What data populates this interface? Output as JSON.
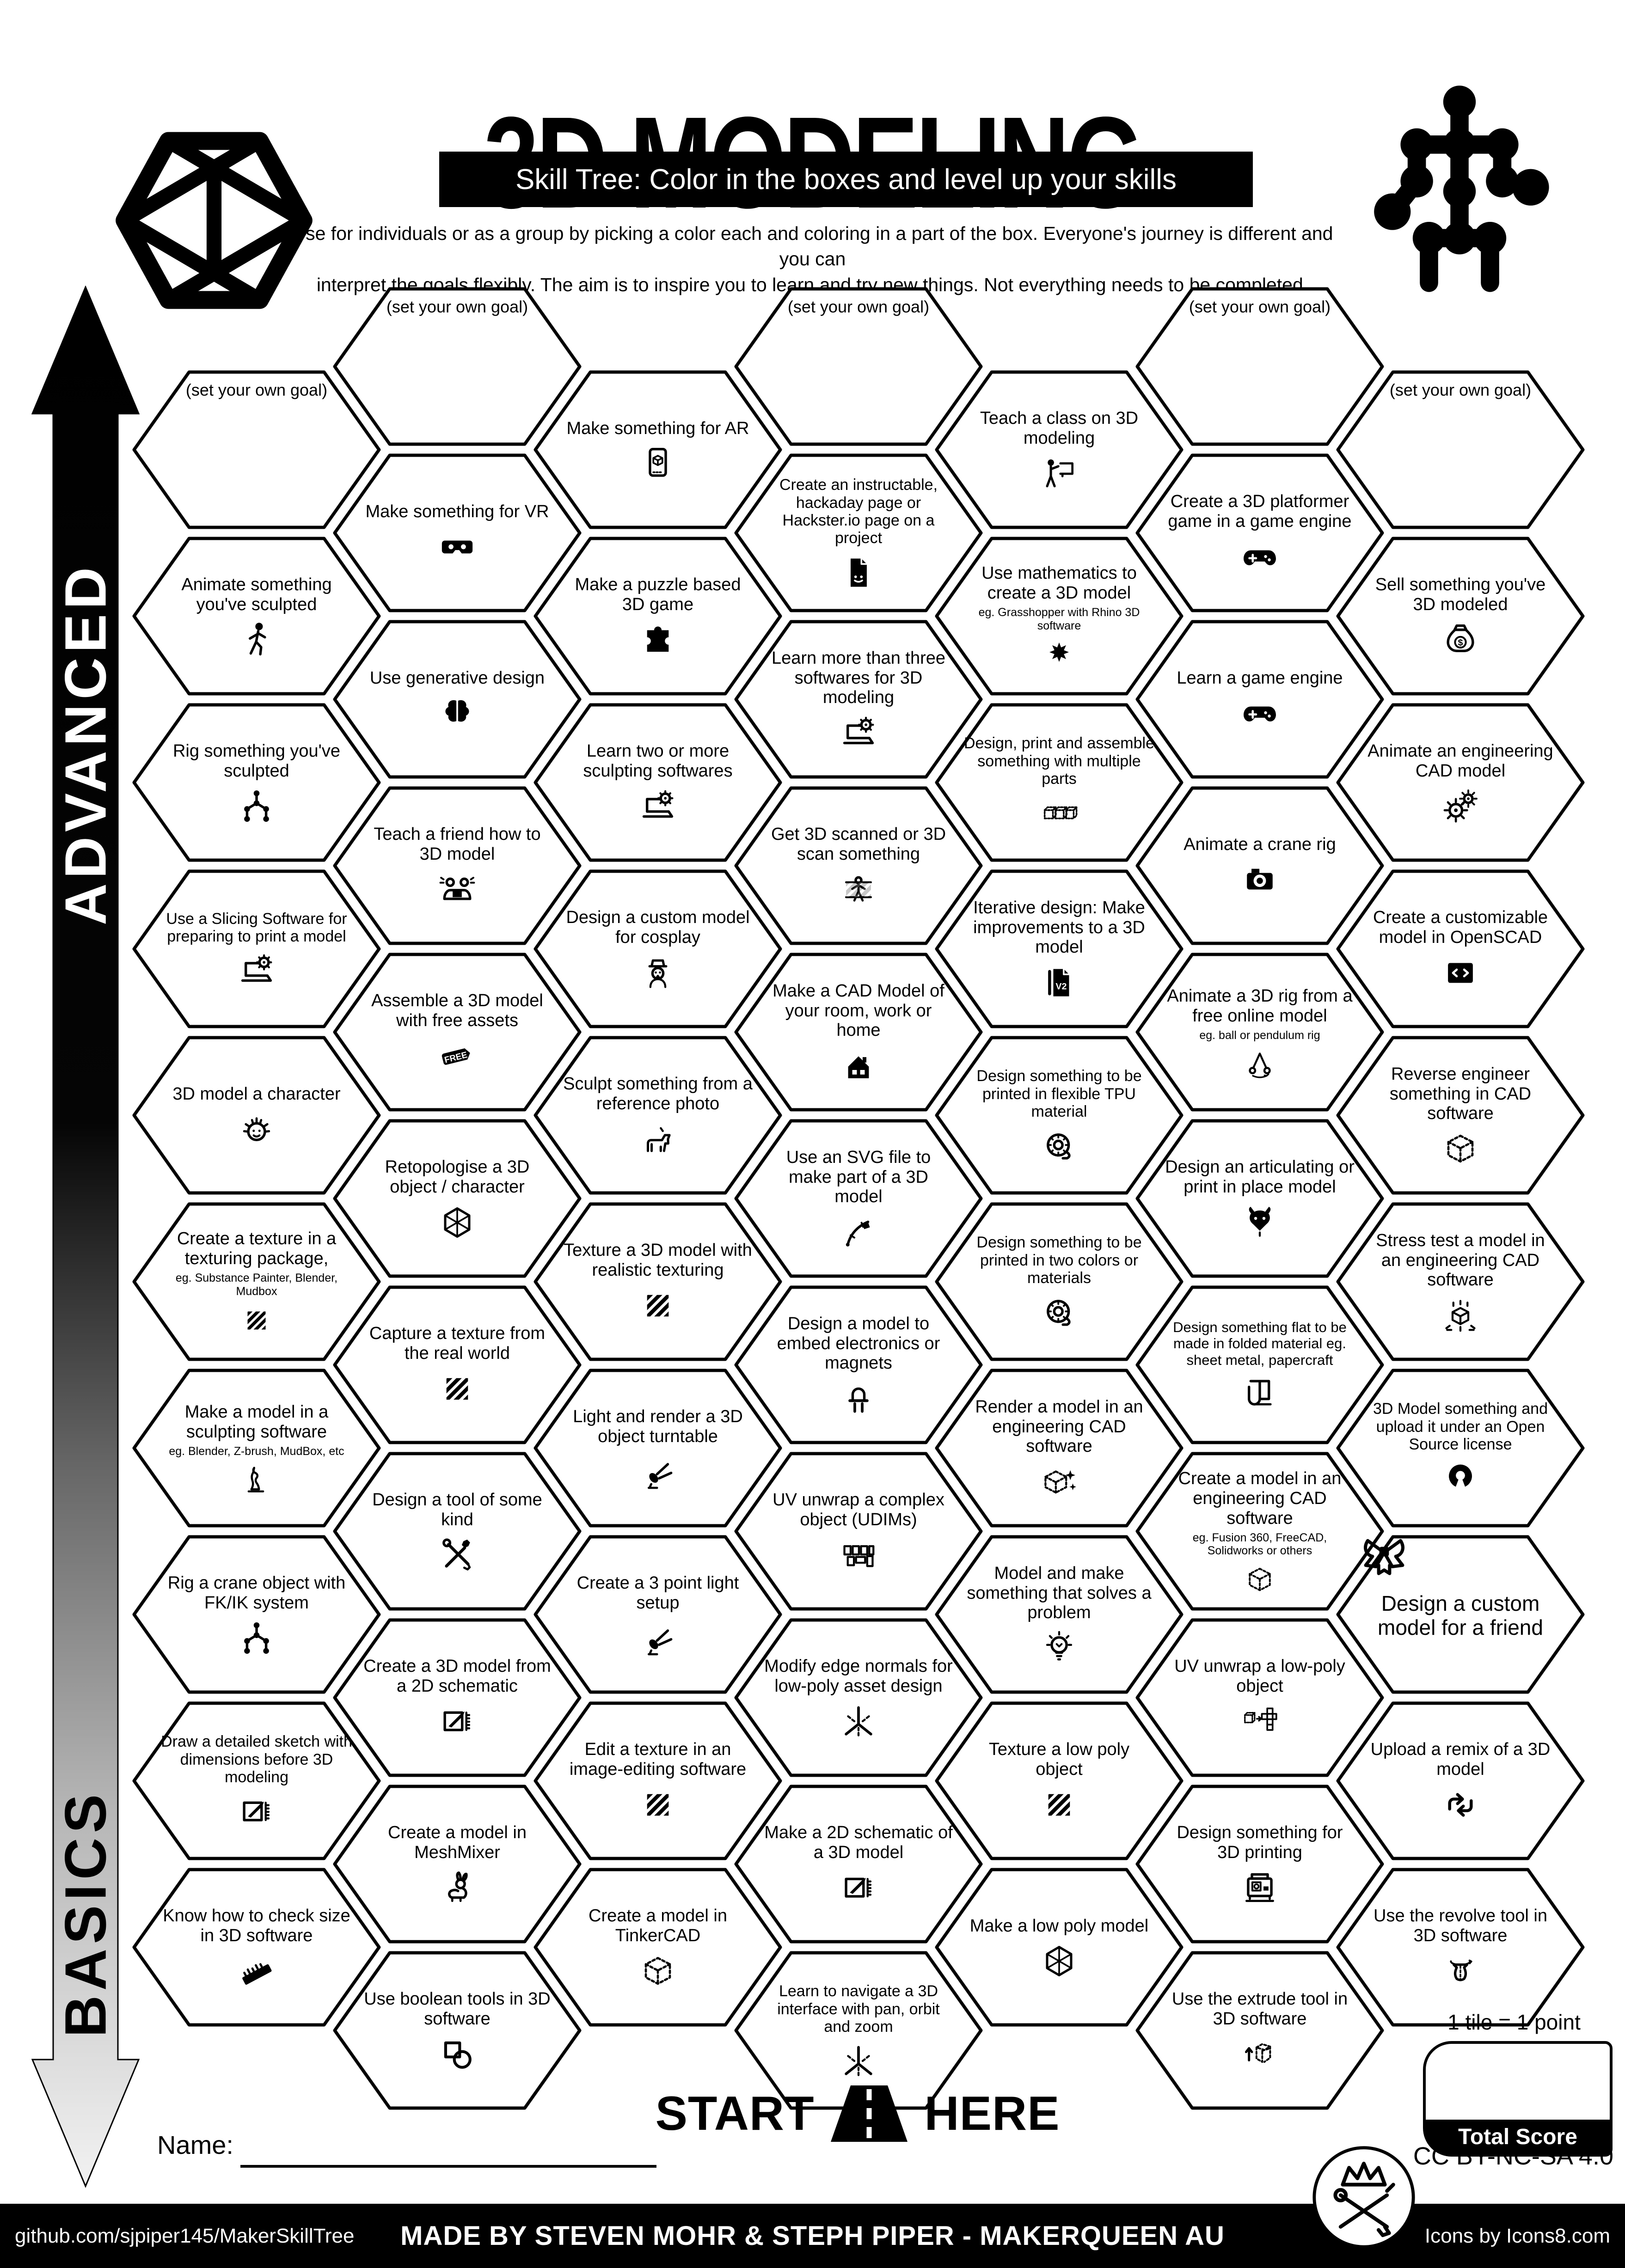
{
  "colors": {
    "ink": "#000000",
    "paper": "#ffffff"
  },
  "header": {
    "title": "3D MODELING",
    "subtitle": "Skill Tree:  Color in the boxes and level up your skills",
    "desc1": "Use for individuals or as a group by picking a color each and coloring in a part of the box.  Everyone's journey is different and you can",
    "desc2": "interpret the goals flexibly.  The aim is to inspire you to learn and try new things. Not everything needs to be completed."
  },
  "axis": {
    "advanced": "ADVANCED",
    "basics": "BASICS"
  },
  "start_here": {
    "start": "START",
    "here": "HERE"
  },
  "scoring": {
    "note": "1 tile = 1 point",
    "total_label": "Total Score"
  },
  "name_label": "Name:",
  "license": "CC BY-NC-SA 4.0",
  "footer": {
    "left": "github.com/sjpiper145/MakerSkillTree",
    "center": "MADE BY STEVEN MOHR & STEPH PIPER  -  MAKERQUEEN AU",
    "right": "Icons by Icons8.com"
  },
  "goal_label": "(set your own goal)",
  "tiles": [
    {
      "c": 0,
      "r": 0,
      "label": "(set your own goal)",
      "icon": null
    },
    {
      "c": 0,
      "r": 1,
      "label": "Animate something you've sculpted",
      "icon": "walking-person"
    },
    {
      "c": 0,
      "r": 2,
      "label": "Rig something you've sculpted",
      "icon": "armature-rig"
    },
    {
      "c": 0,
      "r": 3,
      "label": "Use a Slicing Software for preparing to print a model",
      "icon": "laptop-gear"
    },
    {
      "c": 0,
      "r": 4,
      "label": "3D model a character",
      "icon": "character-face"
    },
    {
      "c": 0,
      "r": 5,
      "label": "Create a texture in a texturing package,",
      "sub": "eg. Substance Painter, Blender, Mudbox",
      "icon": "hatch-swatch"
    },
    {
      "c": 0,
      "r": 6,
      "label": "Make a model in a sculpting software",
      "sub": "eg. Blender, Z-brush, MudBox, etc",
      "icon": "sculpture-statue"
    },
    {
      "c": 0,
      "r": 7,
      "label": "Rig a crane object with FK/IK system",
      "icon": "armature-rig"
    },
    {
      "c": 0,
      "r": 8,
      "label": "Draw a detailed sketch with dimensions before 3D modeling",
      "icon": "sketch-dimensions"
    },
    {
      "c": 0,
      "r": 9,
      "label": "Know how to check size in 3D software",
      "icon": "ruler"
    },
    {
      "c": 1,
      "r": 0,
      "label": "(set your own goal)",
      "icon": null
    },
    {
      "c": 1,
      "r": 1,
      "label": "Make something for VR",
      "icon": "vr-headset"
    },
    {
      "c": 1,
      "r": 2,
      "label": "Use generative design",
      "icon": "brain"
    },
    {
      "c": 1,
      "r": 3,
      "label": "Teach a friend how to 3D model",
      "icon": "friends-laptop"
    },
    {
      "c": 1,
      "r": 4,
      "label": "Assemble a 3D model with free assets",
      "icon": "free-tag"
    },
    {
      "c": 1,
      "r": 5,
      "label": "Retopologise a 3D object / character",
      "icon": "wireframe-hexagon"
    },
    {
      "c": 1,
      "r": 6,
      "label": "Capture a texture from the real world",
      "icon": "hatch-swatch"
    },
    {
      "c": 1,
      "r": 7,
      "label": "Design a tool of some kind",
      "icon": "crossed-tools"
    },
    {
      "c": 1,
      "r": 8,
      "label": "Create a 3D model from a 2D  schematic",
      "icon": "sketch-dimensions"
    },
    {
      "c": 1,
      "r": 9,
      "label": "Create a model in MeshMixer",
      "icon": "rabbit"
    },
    {
      "c": 1,
      "r": 10,
      "label": "Use boolean tools in 3D software",
      "icon": "boolean-shapes"
    },
    {
      "c": 2,
      "r": 0,
      "label": "Make something for AR",
      "icon": "ar-phone"
    },
    {
      "c": 2,
      "r": 1,
      "label": "Make a puzzle based 3D game",
      "icon": "puzzle-piece"
    },
    {
      "c": 2,
      "r": 2,
      "label": "Learn two or more sculpting softwares",
      "icon": "laptop-gear"
    },
    {
      "c": 2,
      "r": 3,
      "label": "Design a custom model for cosplay",
      "icon": "cosplay-face"
    },
    {
      "c": 2,
      "r": 4,
      "label": "Sculpt something from a reference photo",
      "icon": "dog"
    },
    {
      "c": 2,
      "r": 5,
      "label": "Texture a 3D model with realistic texturing",
      "icon": "hatch-swatch"
    },
    {
      "c": 2,
      "r": 6,
      "label": "Light and render a 3D object turntable",
      "icon": "spotlight"
    },
    {
      "c": 2,
      "r": 7,
      "label": "Create a 3 point light setup",
      "icon": "spotlight"
    },
    {
      "c": 2,
      "r": 8,
      "label": "Edit a texture in an image-editing software",
      "icon": "hatch-swatch"
    },
    {
      "c": 2,
      "r": 9,
      "label": "Create a model in TinkerCAD",
      "icon": "dashed-cube"
    },
    {
      "c": 3,
      "r": 0,
      "label": "(set your own goal)",
      "icon": null
    },
    {
      "c": 3,
      "r": 1,
      "label": "Create an instructable, hackaday page or Hackster.io page on a project",
      "icon": "document-page"
    },
    {
      "c": 3,
      "r": 2,
      "label": "Learn more than three softwares for 3D modeling",
      "icon": "laptop-gear"
    },
    {
      "c": 3,
      "r": 3,
      "label": "Get 3D scanned or 3D scan something",
      "icon": "body-scan"
    },
    {
      "c": 3,
      "r": 4,
      "label": "Make a CAD Model of your room, work or home",
      "icon": "house"
    },
    {
      "c": 3,
      "r": 5,
      "label": "Use an SVG file to make part of a 3D model",
      "icon": "vector-pen"
    },
    {
      "c": 3,
      "r": 6,
      "label": "Design a model to embed electronics or magnets",
      "icon": "led"
    },
    {
      "c": 3,
      "r": 7,
      "label": "UV unwrap a complex object (UDIMs)",
      "icon": "udim-tiles"
    },
    {
      "c": 3,
      "r": 8,
      "label": "Modify edge normals for low-poly asset design",
      "icon": "normals-axis"
    },
    {
      "c": 3,
      "r": 9,
      "label": "Make a 2D schematic of a 3D model",
      "icon": "sketch-dimensions"
    },
    {
      "c": 3,
      "r": 10,
      "label": "Learn to navigate a 3D interface with pan, orbit and zoom",
      "icon": "normals-axis"
    },
    {
      "c": 4,
      "r": 0,
      "label": "Teach a class on 3D modeling",
      "icon": "teacher-board"
    },
    {
      "c": 4,
      "r": 1,
      "label": "Use mathematics to create a 3D model",
      "sub": "eg. Grasshopper with Rhino 3D software",
      "icon": "parametric-star"
    },
    {
      "c": 4,
      "r": 2,
      "label": "Design, print and assemble something with multiple parts",
      "icon": "three-cubes"
    },
    {
      "c": 4,
      "r": 3,
      "label": "Iterative design:  Make improvements to a 3D model",
      "icon": "v2-document"
    },
    {
      "c": 4,
      "r": 4,
      "label": "Design something to be printed in flexible TPU material",
      "icon": "filament-spool"
    },
    {
      "c": 4,
      "r": 5,
      "label": "Design something to be printed in two colors or materials",
      "icon": "filament-spool"
    },
    {
      "c": 4,
      "r": 6,
      "label": "Render a model in an engineering CAD software",
      "icon": "sparkle-cube"
    },
    {
      "c": 4,
      "r": 7,
      "label": "Model and make something that solves a problem",
      "icon": "lightbulb"
    },
    {
      "c": 4,
      "r": 8,
      "label": "Texture a low poly object",
      "icon": "hatch-swatch"
    },
    {
      "c": 4,
      "r": 9,
      "label": "Make a low poly model",
      "icon": "wireframe-hexagon"
    },
    {
      "c": 5,
      "r": 0,
      "label": "(set your own goal)",
      "icon": null
    },
    {
      "c": 5,
      "r": 1,
      "label": "Create a 3D platformer game in a game engine",
      "icon": "gamepad"
    },
    {
      "c": 5,
      "r": 2,
      "label": "Learn a game engine",
      "icon": "gamepad"
    },
    {
      "c": 5,
      "r": 3,
      "label": "Animate a crane rig",
      "icon": "camera"
    },
    {
      "c": 5,
      "r": 4,
      "label": "Animate a 3D rig from a free online model",
      "sub": "eg. ball or pendulum rig",
      "icon": "pendulum"
    },
    {
      "c": 5,
      "r": 5,
      "label": "Design an articulating or print in place model",
      "icon": "dragon-head"
    },
    {
      "c": 5,
      "r": 6,
      "label": "Design something flat to be made in folded material eg. sheet metal, papercraft",
      "icon": "folded-sheet"
    },
    {
      "c": 5,
      "r": 7,
      "label": "Create a model in an engineering CAD software",
      "sub": "eg. Fusion 360, FreeCAD, Solidworks or others",
      "icon": "dashed-cube"
    },
    {
      "c": 5,
      "r": 8,
      "label": "UV unwrap a low-poly object",
      "icon": "cube-net"
    },
    {
      "c": 5,
      "r": 9,
      "label": "Design something for 3D printing",
      "icon": "printer-3d"
    },
    {
      "c": 5,
      "r": 10,
      "label": "Use the extrude tool in 3D software",
      "icon": "extrude-cube"
    },
    {
      "c": 6,
      "r": 0,
      "label": "(set your own goal)",
      "icon": null
    },
    {
      "c": 6,
      "r": 1,
      "label": "Sell something you've 3D modeled",
      "icon": "money-bag"
    },
    {
      "c": 6,
      "r": 2,
      "label": "Animate an engineering CAD model",
      "icon": "gears-pair"
    },
    {
      "c": 6,
      "r": 3,
      "label": "Create a customizable model in OpenSCAD",
      "icon": "code-window"
    },
    {
      "c": 6,
      "r": 4,
      "label": "Reverse engineer something in CAD software",
      "icon": "dashed-cube"
    },
    {
      "c": 6,
      "r": 5,
      "label": "Stress test a model in an engineering CAD software",
      "icon": "stress-cube"
    },
    {
      "c": 6,
      "r": 6,
      "label": "3D Model something and upload it under an Open Source license",
      "icon": "opensource-gear"
    },
    {
      "c": 6,
      "r": 7,
      "label": "Design a custom model for a friend",
      "icon": "gift-bow",
      "featured": true
    },
    {
      "c": 6,
      "r": 8,
      "label": "Upload a remix of a 3D model",
      "icon": "remix-arrows"
    },
    {
      "c": 6,
      "r": 9,
      "label": "Use the revolve tool in 3D software",
      "icon": "revolve-vase"
    }
  ]
}
